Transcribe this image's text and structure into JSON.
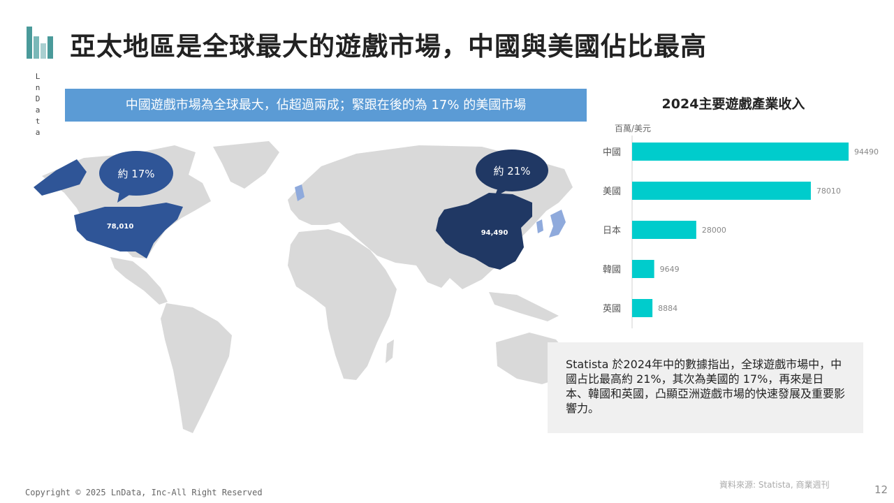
{
  "brand": {
    "name": "LnData",
    "logo_colors": [
      "#4a9a9a",
      "#7ab8b8",
      "#a9cfd0",
      "#4a9a9a"
    ]
  },
  "slide": {
    "title": "亞太地區是全球最大的遊戲市場，中國與美國佔比最高",
    "banner": "中國遊戲市場為全球最大，佔超過兩成；緊跟在後的為 17% 的美國市場",
    "note": "Statista 於2024年中的數據指出，全球遊戲市場中，中國占比最高約 21%，其次為美國的 17%，再來是日本、韓國和英國，凸顯亞洲遊戲市場的快速發展及重要影響力。",
    "copyright": "Copyright © 2025 LnData, Inc-All Right Reserved",
    "source": "資料來源: Statista, 商業週刊",
    "page_number": "12"
  },
  "map": {
    "usa": {
      "share_label": "約 17%",
      "value_label": "78,010",
      "color": "#2f5597"
    },
    "china": {
      "share_label": "約 21%",
      "value_label": "94,490",
      "color": "#203864"
    },
    "land_color": "#d9d9d9",
    "highlight_light": "#8faadc"
  },
  "chart_data": {
    "type": "bar",
    "orientation": "horizontal",
    "title": "2024主要遊戲產業收入",
    "unit": "百萬/美元",
    "categories": [
      "中國",
      "美國",
      "日本",
      "韓國",
      "英國"
    ],
    "values": [
      94490,
      78010,
      28000,
      9649,
      8884
    ],
    "value_labels": [
      "94490",
      "78010",
      "28000",
      "9649",
      "8884"
    ],
    "bar_color": "#00cccc",
    "grid": false
  }
}
